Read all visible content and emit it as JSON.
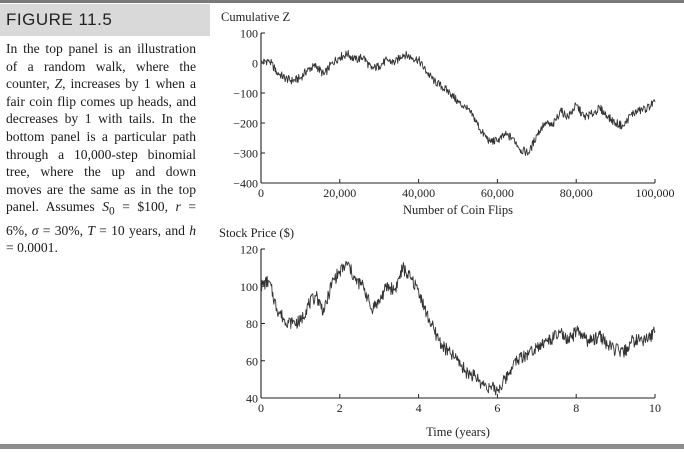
{
  "figure": {
    "label": "FIGURE 11.5",
    "caption_parts": {
      "p1": "In the top panel is an illustration of a random walk, where the counter, ",
      "p2": "Z",
      "p3": ", increases by 1 when a fair coin flip comes up heads, and decreases by 1 with tails. In the bottom panel is a particular path through a 10,000-step binomial tree, where the up and down moves are the same as in the top panel. Assumes ",
      "s0_sym": "S",
      "s0_sub": "0",
      "s0_val": " = $100, ",
      "r_sym": "r",
      "r_val": " = 6%, ",
      "sigma_sym": "σ",
      "sigma_val": " = 30%, ",
      "t_sym": "T",
      "t_val": " = 10 years, and ",
      "h_sym": "h",
      "h_val": " = 0.0001."
    }
  },
  "colors": {
    "line": "#333333",
    "axis": "#222222",
    "label_bg": "#d9d9d9",
    "rule": "#7a7a7a"
  },
  "chart_data": [
    {
      "type": "line",
      "ylabel": "Cumulative Z",
      "xlabel": "Number of Coin Flips",
      "xlim": [
        0,
        100000
      ],
      "ylim": [
        -400,
        100
      ],
      "xticks": [
        0,
        20000,
        40000,
        60000,
        80000,
        100000
      ],
      "xtick_labels": [
        "0",
        "20,000",
        "40,000",
        "60,000",
        "80,000",
        "100,000"
      ],
      "yticks": [
        100,
        0,
        -100,
        -200,
        -300,
        -400
      ],
      "ytick_labels": [
        "100",
        "0",
        "−100",
        "−200",
        "−300",
        "−400"
      ],
      "series": [
        {
          "name": "Cumulative Z",
          "x": [
            0,
            2000,
            4000,
            6000,
            8000,
            10000,
            12000,
            14000,
            16000,
            18000,
            20000,
            22000,
            24000,
            26000,
            28000,
            30000,
            32000,
            34000,
            36000,
            38000,
            40000,
            42000,
            44000,
            46000,
            48000,
            50000,
            52000,
            54000,
            56000,
            58000,
            60000,
            62000,
            64000,
            66000,
            68000,
            70000,
            72000,
            74000,
            76000,
            78000,
            80000,
            82000,
            84000,
            86000,
            88000,
            90000,
            92000,
            94000,
            96000,
            98000,
            100000
          ],
          "values": [
            0,
            10,
            -30,
            -50,
            -60,
            -50,
            -20,
            -10,
            -40,
            0,
            20,
            30,
            10,
            20,
            -20,
            -10,
            10,
            0,
            30,
            20,
            10,
            -30,
            -60,
            -80,
            -100,
            -130,
            -150,
            -180,
            -230,
            -260,
            -260,
            -240,
            -250,
            -290,
            -300,
            -240,
            -200,
            -210,
            -160,
            -180,
            -140,
            -180,
            -170,
            -150,
            -180,
            -200,
            -210,
            -170,
            -160,
            -150,
            -130
          ]
        }
      ]
    },
    {
      "type": "line",
      "ylabel": "Stock Price ($)",
      "xlabel": "Time (years)",
      "xlim": [
        0,
        10
      ],
      "ylim": [
        40,
        120
      ],
      "xticks": [
        0,
        2,
        4,
        6,
        8,
        10
      ],
      "xtick_labels": [
        "0",
        "2",
        "4",
        "6",
        "8",
        "10"
      ],
      "yticks": [
        120,
        100,
        80,
        60,
        40
      ],
      "ytick_labels": [
        "120",
        "100",
        "80",
        "60",
        "40"
      ],
      "series": [
        {
          "name": "Stock Price",
          "x": [
            0,
            0.2,
            0.4,
            0.6,
            0.8,
            1.0,
            1.2,
            1.4,
            1.6,
            1.8,
            2.0,
            2.2,
            2.4,
            2.6,
            2.8,
            3.0,
            3.2,
            3.4,
            3.6,
            3.8,
            4.0,
            4.2,
            4.4,
            4.6,
            4.8,
            5.0,
            5.2,
            5.4,
            5.6,
            5.8,
            6.0,
            6.2,
            6.4,
            6.6,
            6.8,
            7.0,
            7.2,
            7.4,
            7.6,
            7.8,
            8.0,
            8.2,
            8.4,
            8.6,
            8.8,
            9.0,
            9.2,
            9.4,
            9.6,
            9.8,
            10.0
          ],
          "values": [
            100,
            103,
            88,
            82,
            80,
            81,
            90,
            95,
            86,
            102,
            108,
            112,
            103,
            100,
            88,
            92,
            100,
            98,
            110,
            104,
            98,
            85,
            76,
            68,
            64,
            60,
            54,
            52,
            48,
            46,
            44,
            50,
            58,
            62,
            64,
            68,
            70,
            72,
            75,
            70,
            76,
            72,
            70,
            74,
            68,
            66,
            64,
            70,
            72,
            71,
            76
          ]
        }
      ]
    }
  ]
}
